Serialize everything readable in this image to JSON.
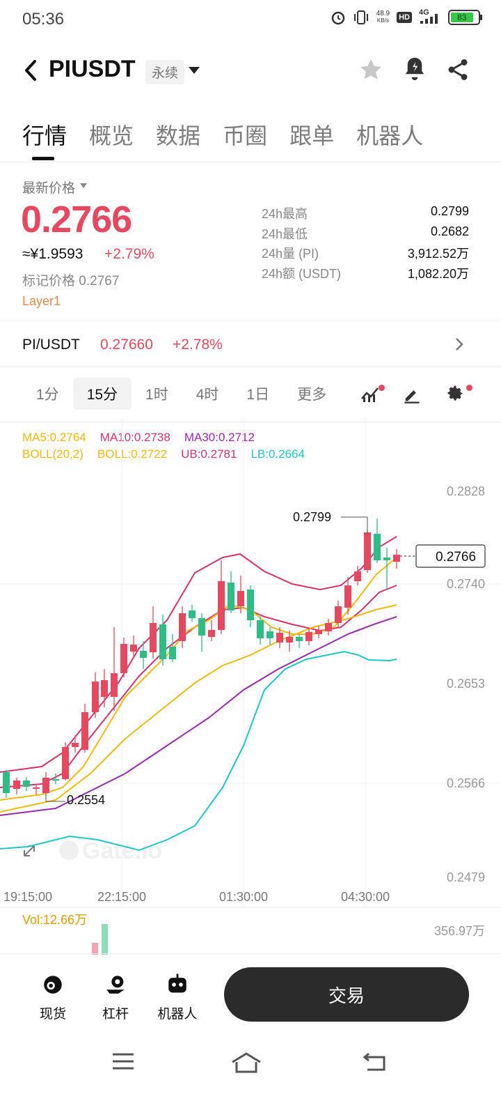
{
  "status_bar": {
    "time": "05:36",
    "net_speed": "48.9",
    "net_unit": "KB/s",
    "hd": "HD",
    "network": "4G",
    "battery": "83"
  },
  "header": {
    "pair": "PIUSDT",
    "contract_type": "永续"
  },
  "tabs": [
    "行情",
    "概览",
    "数据",
    "币圈",
    "跟单",
    "机器人"
  ],
  "price": {
    "latest_label": "最新价格",
    "last": "0.2766",
    "cny": "≈¥1.9593",
    "change": "+2.79%",
    "mark_label": "标记价格",
    "mark_value": "0.2767",
    "tag": "Layer1"
  },
  "stats": [
    {
      "label": "24h最高",
      "value": "0.2799"
    },
    {
      "label": "24h最低",
      "value": "0.2682"
    },
    {
      "label": "24h量 (PI)",
      "value": "3,912.52万"
    },
    {
      "label": "24h额 (USDT)",
      "value": "1,082.20万"
    }
  ],
  "spot_pair": {
    "name": "PI/USDT",
    "price": "0.27660",
    "change": "+2.78%"
  },
  "intervals": [
    "1分",
    "15分",
    "1时",
    "4时",
    "1日",
    "更多"
  ],
  "indicators": {
    "ma5": "MA5:0.2764",
    "ma10": "MA10:0.2738",
    "ma30": "MA30:0.2712",
    "boll": "BOLL(20,2)",
    "boll_mid": "BOLL:0.2722",
    "ub": "UB:0.2781",
    "lb": "LB:0.2664"
  },
  "chart": {
    "y_ticks": [
      "0.2828",
      "0.2740",
      "0.2653",
      "0.2566",
      "0.2479"
    ],
    "x_ticks": [
      "19:15:00",
      "22:15:00",
      "01:30:00",
      "04:30:00"
    ],
    "high_label": "0.2799",
    "low_label": "0.2554",
    "current_price": "0.2766",
    "watermark": "Gate.io",
    "volume_label": "Vol:12.66万",
    "volume_axis": "356.97万",
    "colors": {
      "up": "#e5485f",
      "down": "#2ebd85",
      "ma5": "#f0b90b",
      "ma10": "#d6336c",
      "ma30": "#9c27b0",
      "lb": "#20c6c6"
    }
  },
  "bottom_nav": {
    "spot": "现货",
    "margin": "杠杆",
    "bot": "机器人",
    "trade": "交易"
  }
}
